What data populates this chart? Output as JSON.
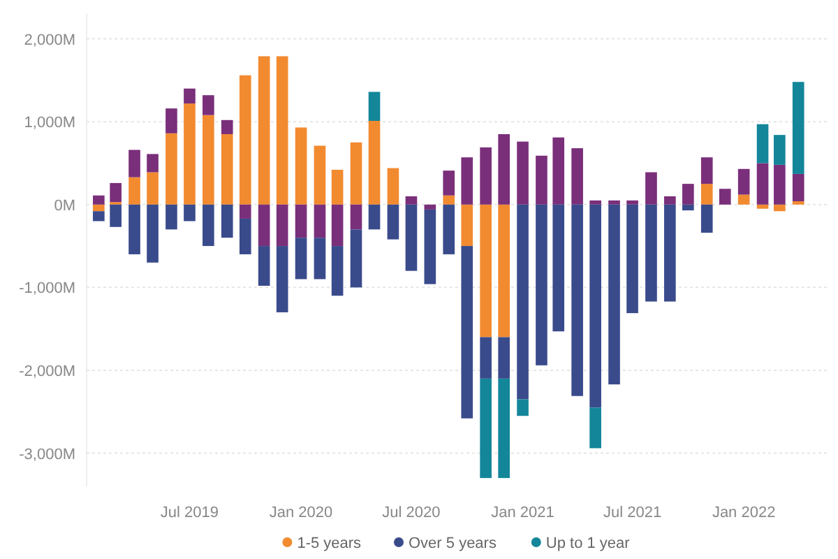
{
  "chart_data": {
    "type": "bar",
    "stacked": true,
    "x": [
      "2019-02",
      "2019-03",
      "2019-04",
      "2019-05",
      "2019-06",
      "2019-07",
      "2019-08",
      "2019-09",
      "2019-10",
      "2019-11",
      "2019-12",
      "2020-01",
      "2020-02",
      "2020-03",
      "2020-04",
      "2020-05",
      "2020-06",
      "2020-07",
      "2020-08",
      "2020-09",
      "2020-10",
      "2020-11",
      "2020-12",
      "2021-01",
      "2021-02",
      "2021-03",
      "2021-04",
      "2021-05",
      "2021-06",
      "2021-07",
      "2021-08",
      "2021-09",
      "2021-10",
      "2021-11",
      "2021-12",
      "2022-01",
      "2022-02",
      "2022-03",
      "2022-04"
    ],
    "xlim": [
      "2019-01-12",
      "2022-05-18"
    ],
    "xticks": [
      {
        "value": "2019-07",
        "label": "Jul 2019"
      },
      {
        "value": "2020-01",
        "label": "Jan 2020"
      },
      {
        "value": "2020-07",
        "label": "Jul 2020"
      },
      {
        "value": "2021-01",
        "label": "Jan 2021"
      },
      {
        "value": "2021-07",
        "label": "Jul 2021"
      },
      {
        "value": "2022-01",
        "label": "Jan 2022"
      }
    ],
    "ylim": [
      -3400,
      2300
    ],
    "yticks": [
      {
        "value": -3000,
        "label": "-3,000M"
      },
      {
        "value": -2000,
        "label": "-2,000M"
      },
      {
        "value": -1000,
        "label": "-1,000M"
      },
      {
        "value": 0,
        "label": "0M"
      },
      {
        "value": 1000,
        "label": "1,000M"
      },
      {
        "value": 2000,
        "label": "2,000M"
      }
    ],
    "grid": "y",
    "legend": "bottom",
    "series": [
      {
        "name": "1-5 years",
        "color": "#f28a30",
        "values": [
          -80,
          30,
          330,
          390,
          860,
          1220,
          1080,
          850,
          1560,
          1790,
          1790,
          930,
          710,
          420,
          750,
          1010,
          440,
          null,
          null,
          110,
          -500,
          -1600,
          -1600,
          null,
          null,
          null,
          null,
          null,
          null,
          null,
          null,
          null,
          null,
          250,
          null,
          120,
          -50,
          -80,
          40
        ]
      },
      {
        "color": "#7a2f7a",
        "values": [
          110,
          230,
          330,
          220,
          300,
          180,
          240,
          170,
          -170,
          -500,
          -500,
          -400,
          -400,
          -500,
          -300,
          null,
          null,
          100,
          -60,
          300,
          570,
          690,
          850,
          760,
          590,
          810,
          680,
          50,
          50,
          50,
          390,
          100,
          250,
          320,
          190,
          310,
          500,
          480,
          330
        ]
      },
      {
        "name": "Over 5 years",
        "color": "#3a4b8c",
        "values": [
          -120,
          -270,
          -600,
          -700,
          -300,
          -200,
          -500,
          -400,
          -430,
          -480,
          -800,
          -500,
          -500,
          -600,
          -700,
          -300,
          -420,
          -800,
          -900,
          -600,
          -2080,
          -500,
          -500,
          -2350,
          -1940,
          -1530,
          -2310,
          -2450,
          -2170,
          -1310,
          -1170,
          -1170,
          -70,
          -340,
          null,
          null,
          null,
          null,
          null
        ]
      },
      {
        "name": "Up to 1 year",
        "color": "#14869a",
        "values": [
          null,
          null,
          null,
          null,
          null,
          null,
          null,
          null,
          null,
          null,
          null,
          null,
          null,
          null,
          null,
          350,
          null,
          null,
          null,
          null,
          null,
          -1200,
          -1200,
          -200,
          null,
          null,
          null,
          -490,
          null,
          null,
          null,
          null,
          null,
          null,
          null,
          null,
          470,
          360,
          1110
        ]
      }
    ]
  }
}
